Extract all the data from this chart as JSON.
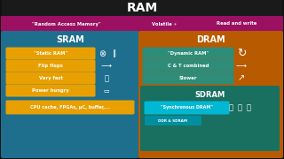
{
  "title": "RAM",
  "outer_bg": "#111111",
  "top_bar_color": "#9b1060",
  "top_labels": [
    "\"Random Access Memory\"",
    "Volatile ⚡",
    "Read and write"
  ],
  "sram_bg": "#1e6e8e",
  "sram_title": "SRAM",
  "sram_items": [
    "\"Static RAM\"",
    "Flip flops",
    "Very fast",
    "Power hungry",
    "CPU cache, FPGAs, µC, buffer,..."
  ],
  "sram_item_color": "#e8a000",
  "dram_bg": "#b85a00",
  "dram_title": "DRAM",
  "dram_items": [
    "\"Dynamic RAM\"",
    "C & T combined",
    "Slower"
  ],
  "dram_item_color": "#2e8c78",
  "sdram_bg": "#1a7060",
  "sdram_title": "SDRAM",
  "sdram_item": "\"Synchronous DRAM\"",
  "sdram_item_color": "#00b8d4",
  "sdram_sub": "DDR & SDRAM",
  "sdram_sub_color": "#008fa0",
  "white": "#ffffff"
}
